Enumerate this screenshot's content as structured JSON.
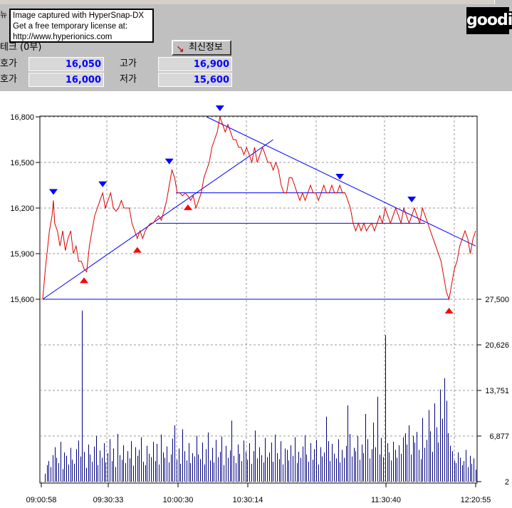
{
  "snapshot_notice": {
    "line1": "Image captured with HyperSnap-DX",
    "line2": "Get a free temporary license at:",
    "line3": "http://www.hyperionics.com"
  },
  "left_glyph": "뉴",
  "logo_text": "good",
  "logo_i": "i",
  "stock_name": "테크 (0부)",
  "refresh_label": "최신정보",
  "quotes": [
    {
      "label": "호가",
      "value": "16,050",
      "label2": "고가",
      "value2": "16,900"
    },
    {
      "label": "호가",
      "value": "16,000",
      "label2": "저가",
      "value2": "15,600"
    }
  ],
  "colors": {
    "price_line": "#dd0000",
    "volume_bar": "#000080",
    "trend_line": "#0000ff",
    "up_arrow": "#ff0000",
    "down_arrow": "#0000ff",
    "grid": "#999999"
  },
  "chart_data": {
    "type": "line",
    "price_axis": {
      "ticks": [
        "16,800",
        "16,500",
        "16,200",
        "15,900",
        "15,600"
      ],
      "ylim": [
        15600,
        16800
      ]
    },
    "volume_axis": {
      "ticks": [
        "27,500",
        "20,626",
        "13,751",
        "6,877",
        "2"
      ],
      "ylim": [
        2,
        27500
      ]
    },
    "time_labels": [
      "09:00:58",
      "09:30:33",
      "10:00:30",
      "10:30:14",
      "11:30:40",
      "12:20:55"
    ],
    "price_series": [
      [
        0,
        15600
      ],
      [
        2,
        15800
      ],
      [
        5,
        16050
      ],
      [
        7,
        16150
      ],
      [
        8,
        16250
      ],
      [
        9,
        16100
      ],
      [
        11,
        16050
      ],
      [
        13,
        15950
      ],
      [
        15,
        16050
      ],
      [
        17,
        15920
      ],
      [
        19,
        16000
      ],
      [
        21,
        16050
      ],
      [
        23,
        15900
      ],
      [
        25,
        15950
      ],
      [
        27,
        15850
      ],
      [
        29,
        15850
      ],
      [
        31,
        15800
      ],
      [
        33,
        15780
      ],
      [
        35,
        15950
      ],
      [
        37,
        16050
      ],
      [
        39,
        16150
      ],
      [
        41,
        16200
      ],
      [
        43,
        16250
      ],
      [
        45,
        16300
      ],
      [
        47,
        16200
      ],
      [
        49,
        16250
      ],
      [
        51,
        16300
      ],
      [
        53,
        16200
      ],
      [
        55,
        16180
      ],
      [
        57,
        16200
      ],
      [
        59,
        16250
      ],
      [
        61,
        16200
      ],
      [
        63,
        16200
      ],
      [
        65,
        16200
      ],
      [
        67,
        16100
      ],
      [
        69,
        16050
      ],
      [
        71,
        16000
      ],
      [
        73,
        16050
      ],
      [
        75,
        16000
      ],
      [
        77,
        16050
      ],
      [
        79,
        16080
      ],
      [
        81,
        16100
      ],
      [
        83,
        16100
      ],
      [
        85,
        16130
      ],
      [
        87,
        16150
      ],
      [
        89,
        16120
      ],
      [
        91,
        16180
      ],
      [
        93,
        16250
      ],
      [
        95,
        16350
      ],
      [
        97,
        16450
      ],
      [
        99,
        16400
      ],
      [
        101,
        16300
      ],
      [
        103,
        16300
      ],
      [
        105,
        16280
      ],
      [
        107,
        16300
      ],
      [
        109,
        16280
      ],
      [
        111,
        16250
      ],
      [
        113,
        16280
      ],
      [
        115,
        16200
      ],
      [
        117,
        16250
      ],
      [
        119,
        16300
      ],
      [
        121,
        16400
      ],
      [
        123,
        16450
      ],
      [
        125,
        16500
      ],
      [
        127,
        16600
      ],
      [
        129,
        16650
      ],
      [
        131,
        16700
      ],
      [
        133,
        16800
      ],
      [
        135,
        16750
      ],
      [
        137,
        16700
      ],
      [
        139,
        16750
      ],
      [
        141,
        16700
      ],
      [
        143,
        16650
      ],
      [
        145,
        16650
      ],
      [
        147,
        16600
      ],
      [
        149,
        16600
      ],
      [
        151,
        16550
      ],
      [
        153,
        16600
      ],
      [
        155,
        16550
      ],
      [
        157,
        16500
      ],
      [
        159,
        16600
      ],
      [
        161,
        16500
      ],
      [
        163,
        16550
      ],
      [
        165,
        16600
      ],
      [
        167,
        16550
      ],
      [
        169,
        16500
      ],
      [
        171,
        16500
      ],
      [
        173,
        16450
      ],
      [
        175,
        16500
      ],
      [
        177,
        16450
      ],
      [
        179,
        16350
      ],
      [
        181,
        16300
      ],
      [
        183,
        16300
      ],
      [
        185,
        16400
      ],
      [
        187,
        16400
      ],
      [
        189,
        16350
      ],
      [
        191,
        16300
      ],
      [
        193,
        16250
      ],
      [
        195,
        16300
      ],
      [
        197,
        16250
      ],
      [
        199,
        16300
      ],
      [
        201,
        16350
      ],
      [
        203,
        16300
      ],
      [
        205,
        16300
      ],
      [
        207,
        16250
      ],
      [
        209,
        16300
      ],
      [
        211,
        16350
      ],
      [
        213,
        16300
      ],
      [
        215,
        16300
      ],
      [
        217,
        16350
      ],
      [
        219,
        16300
      ],
      [
        221,
        16300
      ],
      [
        223,
        16350
      ],
      [
        225,
        16300
      ],
      [
        227,
        16300
      ],
      [
        229,
        16250
      ],
      [
        231,
        16200
      ],
      [
        233,
        16100
      ],
      [
        235,
        16050
      ],
      [
        237,
        16100
      ],
      [
        239,
        16050
      ],
      [
        241,
        16100
      ],
      [
        243,
        16050
      ],
      [
        245,
        16080
      ],
      [
        247,
        16100
      ],
      [
        249,
        16050
      ],
      [
        251,
        16100
      ],
      [
        253,
        16150
      ],
      [
        255,
        16100
      ],
      [
        257,
        16200
      ],
      [
        259,
        16150
      ],
      [
        261,
        16100
      ],
      [
        263,
        16150
      ],
      [
        265,
        16200
      ],
      [
        267,
        16150
      ],
      [
        269,
        16100
      ],
      [
        271,
        16200
      ],
      [
        273,
        16150
      ],
      [
        275,
        16100
      ],
      [
        277,
        16150
      ],
      [
        279,
        16200
      ],
      [
        281,
        16150
      ],
      [
        283,
        16100
      ],
      [
        285,
        16200
      ],
      [
        287,
        16150
      ],
      [
        289,
        16100
      ],
      [
        291,
        16050
      ],
      [
        293,
        16000
      ],
      [
        295,
        15950
      ],
      [
        297,
        15900
      ],
      [
        299,
        15850
      ],
      [
        301,
        15750
      ],
      [
        303,
        15650
      ],
      [
        305,
        15600
      ],
      [
        307,
        15700
      ],
      [
        309,
        15800
      ],
      [
        311,
        15850
      ],
      [
        313,
        15950
      ],
      [
        315,
        16000
      ],
      [
        317,
        16050
      ],
      [
        319,
        16000
      ],
      [
        321,
        15900
      ],
      [
        323,
        16000
      ],
      [
        325,
        16050
      ]
    ],
    "volume_series": [
      0,
      1200,
      2500,
      3100,
      2200,
      4000,
      5200,
      3600,
      2800,
      6000,
      1900,
      4400,
      3900,
      2600,
      5100,
      3300,
      2700,
      4900,
      6200,
      3800,
      25800,
      4500,
      2100,
      5600,
      4100,
      3000,
      5300,
      6900,
      2500,
      4700,
      3600,
      5800,
      2900,
      4300,
      6400,
      3100,
      5000,
      2200,
      7200,
      4000,
      3300,
      5500,
      2800,
      4600,
      3500,
      6100,
      2400,
      5200,
      3900,
      4800,
      6700,
      3000,
      2500,
      5400,
      4200,
      3700,
      6000,
      3100,
      5700,
      2600,
      7100,
      4400,
      3600,
      5300,
      2900,
      4100,
      6500,
      8500,
      3300,
      5000,
      2700,
      7900,
      4600,
      3200,
      5800,
      2800,
      4300,
      3800,
      6900,
      4100,
      3400,
      5900,
      2600,
      4900,
      7400,
      3200,
      5100,
      2900,
      6300,
      3700,
      4500,
      6800,
      2500,
      5400,
      3600,
      4700,
      9200,
      3900,
      2800,
      5600,
      4200,
      3100,
      6200,
      4500,
      3300,
      5800,
      2700,
      4600,
      7700,
      3500,
      5200,
      4000,
      2900,
      6600,
      3700,
      4400,
      5900,
      3000,
      7100,
      4300,
      3400,
      6100,
      2600,
      5000,
      4800,
      3200,
      5500,
      3900,
      6700,
      2800,
      4500,
      3600,
      5300,
      7000,
      4100,
      3000,
      5800,
      3300,
      4900,
      6300,
      2600,
      5200,
      3800,
      4400,
      9800,
      6100,
      3100,
      5700,
      4200,
      3500,
      6400,
      2900,
      4800,
      3600,
      5400,
      11500,
      7200,
      3800,
      5100,
      4600,
      6900,
      3300,
      5600,
      4300,
      10200,
      6400,
      3500,
      4900,
      8900,
      5200,
      12800,
      4100,
      6600,
      3700,
      22100,
      5800,
      4400,
      3200,
      6000,
      4800,
      3600,
      5500,
      4200,
      6700,
      7300,
      5600,
      8500,
      4100,
      6900,
      5900,
      7500,
      4800,
      3400,
      9600,
      5100,
      6300,
      10800,
      7600,
      4500,
      11800,
      8200,
      5900,
      13900,
      9500,
      15600,
      12200,
      7300,
      5400,
      4600,
      3200,
      2800,
      4400,
      3600,
      2500,
      3100,
      4800,
      2200,
      3900,
      2700,
      3500,
      1800
    ]
  }
}
